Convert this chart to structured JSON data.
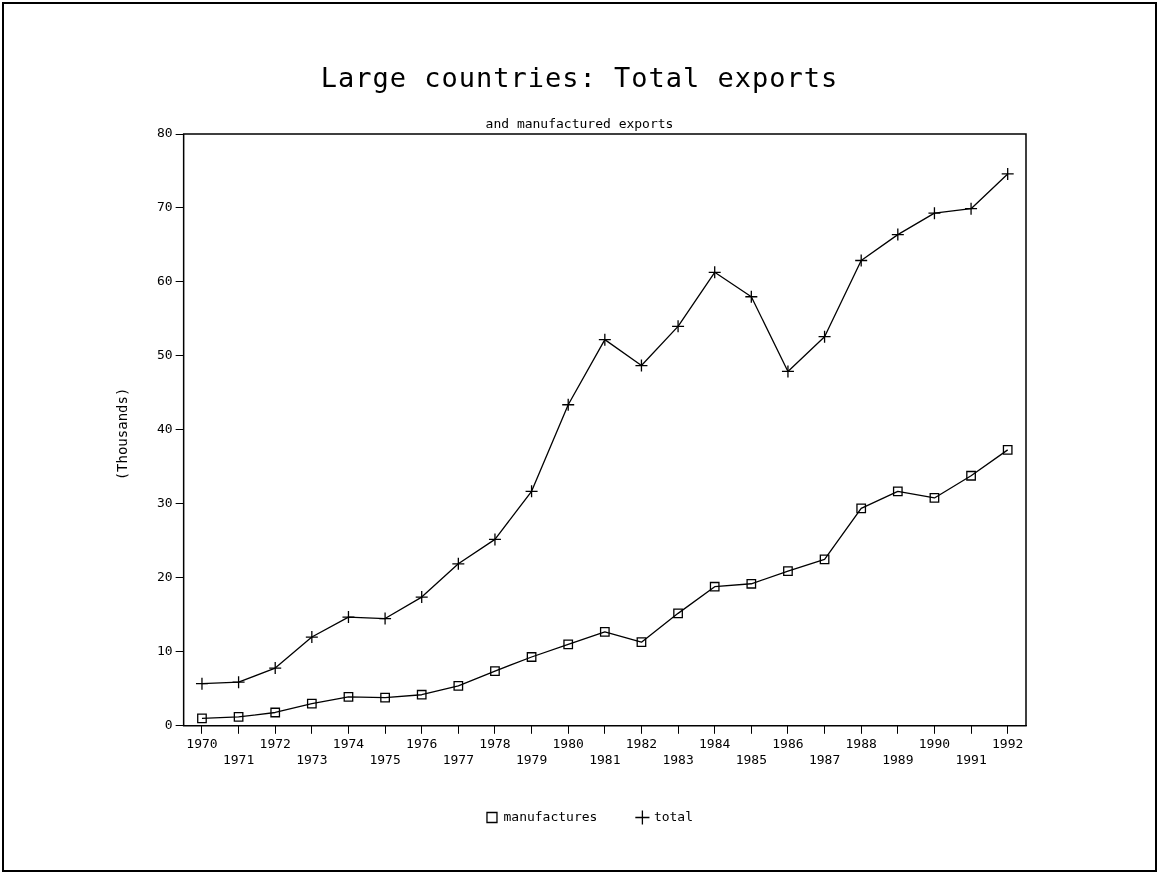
{
  "chart_data": {
    "type": "line",
    "title": "Large countries: Total exports",
    "subtitle": "and manufactured exports",
    "ylabel": "(Thousands)",
    "categories": [
      "1970",
      "1971",
      "1972",
      "1973",
      "1974",
      "1975",
      "1976",
      "1977",
      "1978",
      "1979",
      "1980",
      "1981",
      "1982",
      "1983",
      "1984",
      "1985",
      "1986",
      "1987",
      "1988",
      "1989",
      "1990",
      "1991",
      "1992"
    ],
    "series": [
      {
        "name": "manufactures",
        "color": "#000000",
        "marker": "square",
        "values": [
          1.0,
          1.2,
          1.8,
          3.0,
          3.9,
          3.8,
          4.2,
          5.4,
          7.4,
          9.3,
          11.0,
          12.7,
          11.3,
          15.2,
          18.8,
          19.2,
          20.9,
          22.5,
          29.4,
          31.7,
          30.8,
          33.8,
          37.3
        ]
      },
      {
        "name": "total",
        "color": "#000000",
        "marker": "cross",
        "values": [
          5.7,
          5.9,
          7.8,
          12.0,
          14.7,
          14.5,
          17.4,
          21.9,
          25.2,
          31.7,
          43.4,
          52.2,
          48.7,
          54.0,
          61.3,
          58.0,
          47.9,
          52.6,
          62.9,
          66.4,
          69.3,
          69.9,
          74.6
        ]
      }
    ],
    "ylim": [
      0,
      80
    ],
    "yticks": [
      0,
      10,
      20,
      30,
      40,
      50,
      60,
      70,
      80
    ],
    "grid": false,
    "legend": "bottom",
    "line_style": "solid"
  }
}
